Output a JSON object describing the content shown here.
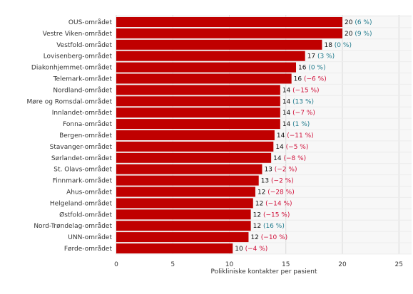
{
  "colors": {
    "bar": "#c00000",
    "positive_change": "#1f7a8c",
    "negative_change": "#d0103a",
    "plot_background": "#f7f7f7",
    "grid": "#d9d9d9"
  },
  "chart_data": {
    "type": "bar",
    "orientation": "horizontal",
    "categories": [
      "OUS-området",
      "Vestre Viken-området",
      "Vestfold-området",
      "Lovisenberg-området",
      "Diakonhjemmet-området",
      "Telemark-området",
      "Nordland-området",
      "Møre og Romsdal-området",
      "Innlandet-området",
      "Fonna-området",
      "Bergen-området",
      "Stavanger-området",
      "Sørlandet-området",
      "St. Olavs-området",
      "Finnmark-området",
      "Ahus-området",
      "Helgeland-området",
      "Østfold-området",
      "Nord-Trøndelag-området",
      "UNN-området",
      "Førde-området"
    ],
    "values": [
      20,
      20,
      18,
      17,
      16,
      16,
      14,
      14,
      14,
      14,
      14,
      14,
      14,
      13,
      13,
      12,
      12,
      12,
      12,
      12,
      10
    ],
    "value_labels": [
      "20",
      "20",
      "18",
      "17",
      "16",
      "16",
      "14",
      "14",
      "14",
      "14",
      "14",
      "14",
      "14",
      "13",
      "13",
      "12",
      "12",
      "12",
      "12",
      "12",
      "10"
    ],
    "changes": [
      "(6 %)",
      "(9 %)",
      "(0 %)",
      "(3 %)",
      "(0 %)",
      "(−6 %)",
      "(−15 %)",
      "(13 %)",
      "(−7 %)",
      "(1 %)",
      "(−11 %)",
      "(−5 %)",
      "(−8 %)",
      "(−2 %)",
      "(−2 %)",
      "(−28 %)",
      "(−14 %)",
      "(−15 %)",
      "(16 %)",
      "(−10 %)",
      "(−4 %)"
    ],
    "change_sign": [
      1,
      1,
      1,
      1,
      1,
      -1,
      -1,
      1,
      -1,
      1,
      -1,
      -1,
      -1,
      -1,
      -1,
      -1,
      -1,
      -1,
      1,
      -1,
      -1
    ],
    "bar_lengths": [
      20.0,
      20.0,
      18.2,
      16.7,
      15.9,
      15.5,
      14.5,
      14.5,
      14.5,
      14.5,
      14.0,
      13.9,
      13.7,
      12.9,
      12.6,
      12.3,
      12.1,
      11.9,
      11.9,
      11.7,
      10.3
    ],
    "xticks": [
      0,
      5,
      10,
      15,
      20,
      25
    ],
    "xlim": [
      0,
      26.3
    ],
    "xlabel": "Polikliniske kontakter per pasient",
    "grid": "vertical"
  }
}
